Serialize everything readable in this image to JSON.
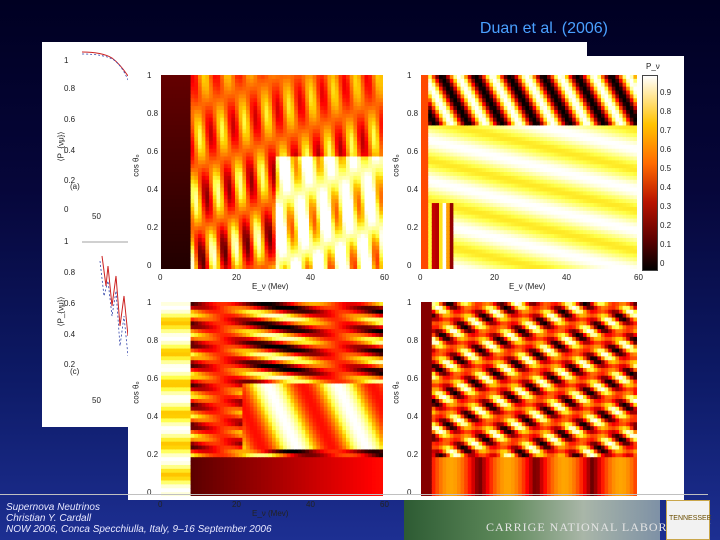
{
  "citation": "Duan et al. (2006)",
  "back_figure": {
    "y_axis_label": "⟨P_{νμ}⟩",
    "y_ticks": [
      "1",
      "0.8",
      "0.6",
      "0.4",
      "0.2",
      "0"
    ],
    "x_tick": "50",
    "panel_a": "(a)",
    "panel_c": "(c)"
  },
  "front_figure": {
    "colorbar_title": "P_ν",
    "colorbar_ticks": [
      "0.9",
      "0.8",
      "0.7",
      "0.6",
      "0.5",
      "0.4",
      "0.3",
      "0.2",
      "0.1",
      "0"
    ],
    "y_axis_label": "cos θ₀",
    "x_axis_label": "E_ν (Mev)",
    "y_ticks": [
      "1",
      "0.8",
      "0.6",
      "0.4",
      "0.2",
      "0"
    ],
    "x_ticks": [
      "0",
      "20",
      "40",
      "60"
    ]
  },
  "colors": {
    "background_top": "#000022",
    "background_bottom": "#1d2f92",
    "citation": "#4aa0ff"
  },
  "footer": {
    "line1": "Supernova Neutrinos",
    "line2": "Christian Y. Cardall",
    "line3": "NOW 2006, Conca Specchiulla, Italy, 9–16 September 2006"
  },
  "banner_text": "CARRIGE NATIONAL LABORATORY",
  "logo_text": "TENNESSEE"
}
